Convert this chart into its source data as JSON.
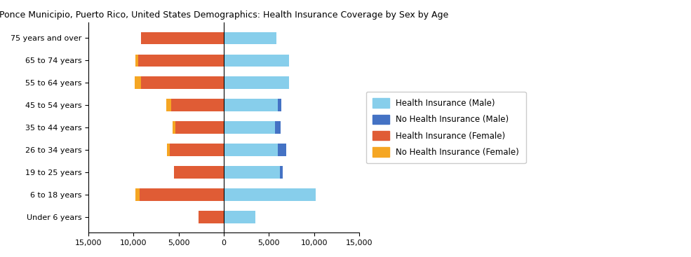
{
  "title": "Ponce Municipio, Puerto Rico, United States Demographics: Health Insurance Coverage by Sex by Age",
  "age_groups": [
    "Under 6 years",
    "6 to 18 years",
    "19 to 25 years",
    "26 to 34 years",
    "35 to 44 years",
    "45 to 54 years",
    "55 to 64 years",
    "65 to 74 years",
    "75 years and over"
  ],
  "health_insurance_male": [
    3500,
    10200,
    6200,
    6000,
    5700,
    6000,
    7200,
    7200,
    5800
  ],
  "no_health_insurance_male": [
    0,
    0,
    300,
    900,
    600,
    400,
    0,
    0,
    0
  ],
  "health_insurance_female": [
    2800,
    9300,
    5500,
    6000,
    5400,
    5800,
    9200,
    9500,
    9200
  ],
  "no_health_insurance_female": [
    0,
    500,
    0,
    300,
    300,
    600,
    700,
    300,
    0
  ],
  "color_health_insurance_male": "#87CEEB",
  "color_no_health_insurance_male": "#4472C4",
  "color_health_insurance_female": "#E05C35",
  "color_no_health_insurance_female": "#F5A623",
  "xlim": 15000,
  "xticks": [
    -15000,
    -10000,
    -5000,
    0,
    5000,
    10000,
    15000
  ],
  "xticklabels": [
    "15,000",
    "10,000",
    "5,000",
    "0",
    "5,000",
    "10,000",
    "15,000"
  ],
  "background_color": "#ffffff",
  "legend_labels": [
    "Health Insurance (Male)",
    "No Health Insurance (Male)",
    "Health Insurance (Female)",
    "No Health Insurance (Female)"
  ]
}
